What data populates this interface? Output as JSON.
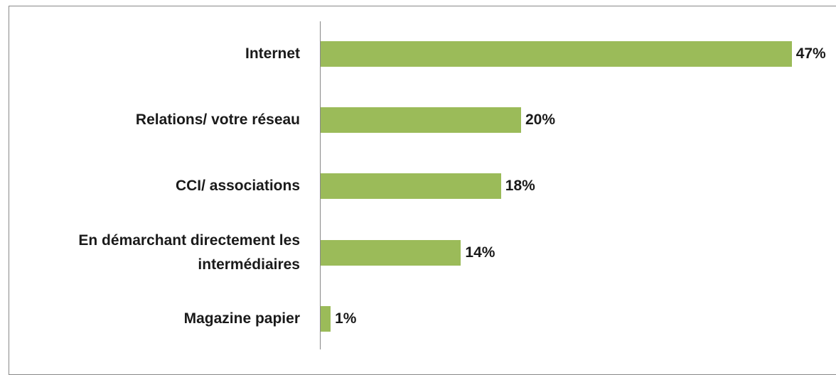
{
  "chart_data": {
    "type": "bar",
    "orientation": "horizontal",
    "categories": [
      "Internet",
      "Relations/ votre réseau",
      "CCI/ associations",
      "En démarchant directement les intermédiaires",
      "Magazine papier"
    ],
    "values": [
      47,
      20,
      18,
      14,
      1
    ],
    "value_labels": [
      "47%",
      "20%",
      "18%",
      "14%",
      "1%"
    ],
    "color": "#9bbb59",
    "xlim": [
      0,
      50
    ]
  }
}
